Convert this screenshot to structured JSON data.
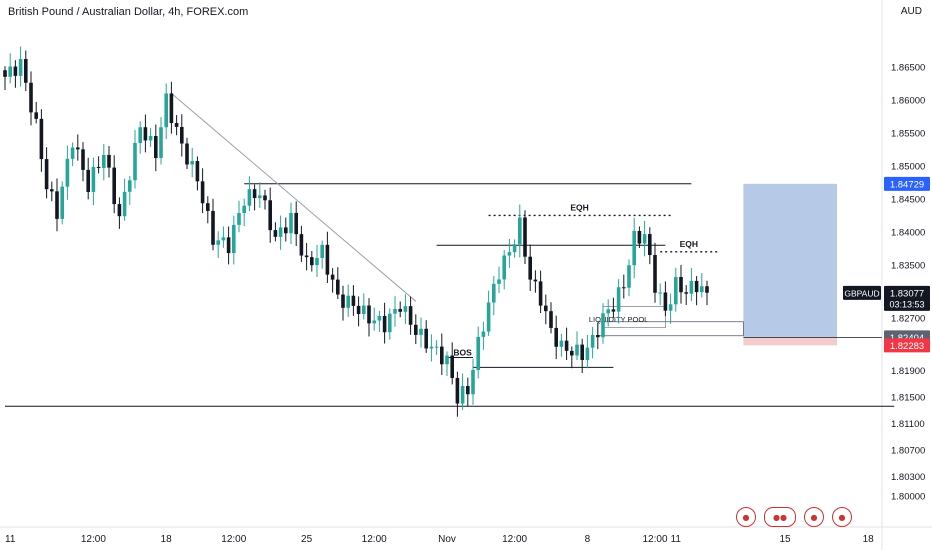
{
  "header": {
    "title": "British Pound / Australian Dollar, 4h, FOREX.com",
    "currency": "AUD"
  },
  "chart_data": {
    "type": "candlestick",
    "symbol": "GBPAUD",
    "ylim": [
      1.7985,
      1.8715
    ],
    "y_ticks": [
      {
        "value": 1.865,
        "label": "1.86500"
      },
      {
        "value": 1.86,
        "label": "1.86000"
      },
      {
        "value": 1.855,
        "label": "1.85500"
      },
      {
        "value": 1.85,
        "label": "1.85000"
      },
      {
        "value": 1.845,
        "label": "1.84500"
      },
      {
        "value": 1.84,
        "label": "1.84000"
      },
      {
        "value": 1.835,
        "label": "1.83500"
      },
      {
        "value": 1.827,
        "label": "1.82700"
      },
      {
        "value": 1.819,
        "label": "1.81900"
      },
      {
        "value": 1.815,
        "label": "1.81500"
      },
      {
        "value": 1.811,
        "label": "1.81100"
      },
      {
        "value": 1.807,
        "label": "1.80700"
      },
      {
        "value": 1.803,
        "label": "1.80300"
      },
      {
        "value": 1.8,
        "label": "1.80000"
      }
    ],
    "x_ticks": [
      {
        "bar": 1,
        "label": "11"
      },
      {
        "bar": 17,
        "label": "12:00"
      },
      {
        "bar": 31,
        "label": "18"
      },
      {
        "bar": 44,
        "label": "12:00"
      },
      {
        "bar": 58,
        "label": "25"
      },
      {
        "bar": 71,
        "label": "12:00"
      },
      {
        "bar": 85,
        "label": "Nov"
      },
      {
        "bar": 98,
        "label": "12:00"
      },
      {
        "bar": 112,
        "label": "8"
      },
      {
        "bar": 125,
        "label": "12:00"
      },
      {
        "bar": 129,
        "label": "11"
      },
      {
        "bar": 150,
        "label": "15"
      },
      {
        "bar": 166,
        "label": "18"
      }
    ],
    "candle_keypoints": [
      [
        0,
        1.8635
      ],
      [
        3,
        1.8655
      ],
      [
        6,
        1.856
      ],
      [
        8,
        1.847
      ],
      [
        10,
        1.843
      ],
      [
        13,
        1.854
      ],
      [
        16,
        1.847
      ],
      [
        19,
        1.852
      ],
      [
        22,
        1.842
      ],
      [
        26,
        1.856
      ],
      [
        29,
        1.852
      ],
      [
        31,
        1.86
      ],
      [
        34,
        1.853
      ],
      [
        37,
        1.848
      ],
      [
        40,
        1.839
      ],
      [
        43,
        1.838
      ],
      [
        46,
        1.845
      ],
      [
        49,
        1.846
      ],
      [
        52,
        1.839
      ],
      [
        55,
        1.842
      ],
      [
        58,
        1.835
      ],
      [
        61,
        1.837
      ],
      [
        64,
        1.83
      ],
      [
        67,
        1.829
      ],
      [
        70,
        1.827
      ],
      [
        73,
        1.826
      ],
      [
        76,
        1.829
      ],
      [
        79,
        1.825
      ],
      [
        82,
        1.8225
      ],
      [
        85,
        1.8205
      ],
      [
        87,
        1.815
      ],
      [
        89,
        1.816
      ],
      [
        91,
        1.823
      ],
      [
        93,
        1.829
      ],
      [
        95,
        1.834
      ],
      [
        97,
        1.837
      ],
      [
        99,
        1.841
      ],
      [
        101,
        1.833
      ],
      [
        103,
        1.83
      ],
      [
        105,
        1.825
      ],
      [
        107,
        1.8225
      ],
      [
        109,
        1.822
      ],
      [
        111,
        1.8215
      ],
      [
        113,
        1.8235
      ],
      [
        115,
        1.827
      ],
      [
        117,
        1.829
      ],
      [
        119,
        1.832
      ],
      [
        121,
        1.839
      ],
      [
        123,
        1.8395
      ],
      [
        125,
        1.832
      ],
      [
        127,
        1.828
      ],
      [
        129,
        1.832
      ],
      [
        131,
        1.831
      ],
      [
        133,
        1.832
      ],
      [
        135,
        1.8308
      ]
    ],
    "lines": [
      {
        "name": "resistance-high",
        "y": 1.8473,
        "from_bar": 46,
        "to_bar": 132
      },
      {
        "name": "range-line",
        "y": 1.838,
        "from_bar": 83,
        "to_bar": 127
      },
      {
        "name": "bos-line",
        "y": 1.8195,
        "from_bar": 90,
        "to_bar": 117
      },
      {
        "name": "bos-top",
        "y": 1.821,
        "from_bar": 85,
        "to_bar": 90
      },
      {
        "name": "support-low",
        "y": 1.8136,
        "from_bar": 0,
        "to_bar": 171
      },
      {
        "name": "trendline",
        "from_bar": 32,
        "from_y": 1.861,
        "to_bar": 79,
        "to_y": 1.8295
      }
    ],
    "dotted_levels": [
      {
        "label": "EQH",
        "y": 1.8425,
        "from_bar": 93,
        "to_bar": 128
      },
      {
        "label": "EQH",
        "y": 1.837,
        "from_bar": 126,
        "to_bar": 137
      }
    ],
    "annotations": [
      {
        "text": "BOS",
        "bar": 88,
        "y": 1.8213
      },
      {
        "text": "LIQUIDITY POOL",
        "bar": 118,
        "y": 1.8264
      }
    ],
    "position": {
      "from_bar": 142,
      "to_bar": 160,
      "target": 1.84729,
      "entry": 1.82404,
      "stop": 1.82283,
      "target_color": "#a9c1e3",
      "stop_color": "#f3cccc"
    },
    "price_labels": [
      {
        "value": 1.84729,
        "label": "1.84729",
        "color": "#2962ff"
      },
      {
        "value": 1.82404,
        "label": "1.82404",
        "color": "#5d6270"
      },
      {
        "value": 1.82283,
        "label": "1.82283",
        "color": "#f23645"
      }
    ],
    "current": {
      "ticker": "GBPAUD",
      "price": "1.83077",
      "value": 1.83077,
      "countdown": "03:13:53"
    },
    "colors": {
      "up": "#26a69a",
      "down": "#131722",
      "line": "#131722",
      "trendline": "#9aa0a6"
    }
  },
  "flags": [
    "uk-flag",
    "uk-au-flags",
    "au-flag",
    "au-flag"
  ]
}
